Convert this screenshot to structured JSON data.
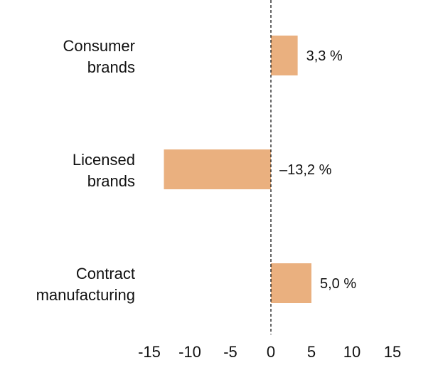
{
  "chart_data": {
    "type": "bar",
    "orientation": "horizontal",
    "title": "",
    "xlabel": "",
    "ylabel": "",
    "categories": [
      [
        "Consumer",
        "brands"
      ],
      [
        "Licensed",
        "brands"
      ],
      [
        "Contract",
        "manufacturing"
      ]
    ],
    "values": [
      3.3,
      -13.2,
      5.0
    ],
    "value_labels": [
      "3,3 %",
      "–13,2 %",
      "5,0 %"
    ],
    "xlim": [
      -15,
      15
    ],
    "xticks": [
      -15,
      -10,
      -5,
      0,
      5,
      10,
      15
    ],
    "xtick_labels": [
      "-15",
      "-10",
      "-5",
      "0",
      "5",
      "10",
      "15"
    ],
    "zero_line": "dashed",
    "grid": false,
    "bar_color": "#EAB07F"
  }
}
